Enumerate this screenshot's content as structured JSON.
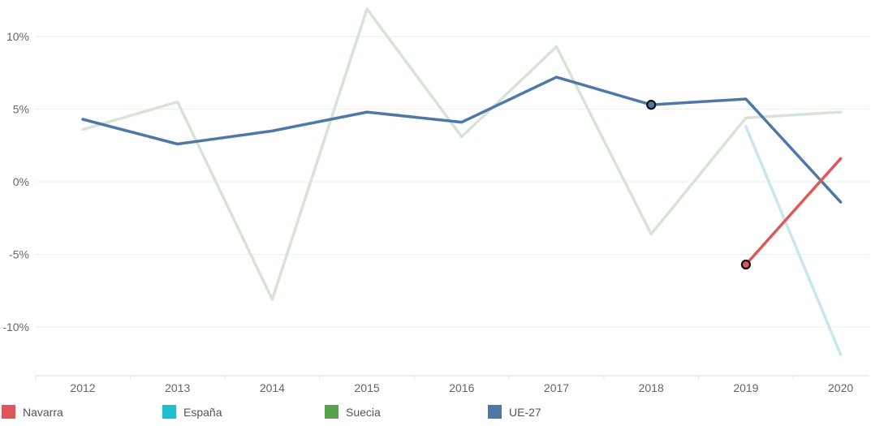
{
  "chart_data": {
    "type": "line",
    "title": "",
    "xlabel": "",
    "ylabel": "",
    "x": [
      "2012",
      "2013",
      "2014",
      "2015",
      "2016",
      "2017",
      "2018",
      "2019",
      "2020"
    ],
    "ylim": [
      -13.5,
      12.5
    ],
    "y_ticks": [
      10,
      5,
      0,
      -5,
      -10
    ],
    "y_tick_labels": [
      "10%",
      "5%",
      "0%",
      "-5%",
      "-10%"
    ],
    "grid": true,
    "legend_position": "bottom",
    "series": [
      {
        "name": "Suecia",
        "color": "#d6e4d6",
        "values": [
          3.6,
          5.5,
          -8.1,
          11.9,
          3.1,
          9.3,
          -3.6,
          4.4,
          4.8
        ]
      },
      {
        "name": "España",
        "color": "#c8e6ee",
        "values": [
          null,
          null,
          null,
          null,
          null,
          null,
          null,
          3.8,
          -11.9
        ]
      },
      {
        "name": "UE-27",
        "color": "#4e79a7",
        "values": [
          4.3,
          2.6,
          3.5,
          4.8,
          4.1,
          7.2,
          5.3,
          5.7,
          -1.4
        ],
        "markers": [
          6
        ]
      },
      {
        "name": "Navarra",
        "color": "#e15759",
        "values": [
          null,
          null,
          null,
          null,
          null,
          null,
          null,
          -5.7,
          1.6
        ],
        "markers": [
          7
        ]
      }
    ]
  },
  "legend": {
    "items": [
      {
        "label": "Navarra",
        "color": "#e15759"
      },
      {
        "label": "España",
        "color": "#1ebecd"
      },
      {
        "label": "Suecia",
        "color": "#59a14f"
      },
      {
        "label": "UE-27",
        "color": "#4e79a7"
      }
    ]
  }
}
